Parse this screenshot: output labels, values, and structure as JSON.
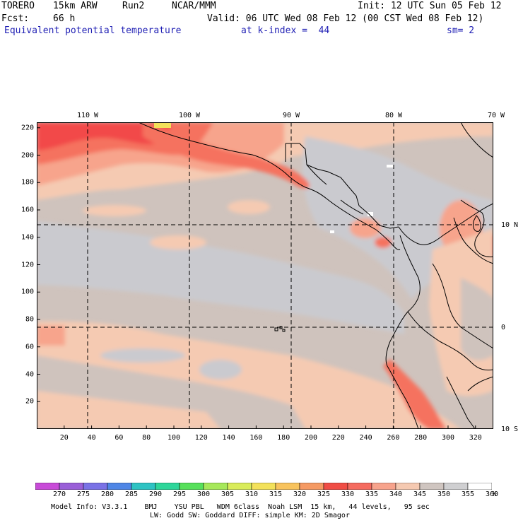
{
  "header": {
    "model": "TORERO",
    "resolution": "15km ARW",
    "run": "Run2",
    "org": "NCAR/MMM",
    "init": "Init: 12 UTC Sun 05 Feb 12",
    "fcst_label": "Fcst:",
    "fcst_value": "66 h",
    "valid": "Valid: 06 UTC Wed 08 Feb 12 (00 CST Wed 08 Feb 12)",
    "field": "Equivalent potential temperature",
    "level": "at k-index =  44",
    "smooth": "sm= 2"
  },
  "map": {
    "lon_labels": [
      "110 W",
      "100 W",
      "90 W",
      "80 W",
      "70 W"
    ],
    "lat_labels": [
      "10 N",
      "0",
      "10 S"
    ],
    "x_ticks": [
      "20",
      "40",
      "60",
      "80",
      "100",
      "120",
      "140",
      "160",
      "180",
      "200",
      "220",
      "240",
      "260",
      "280",
      "300",
      "320"
    ],
    "y_ticks": [
      "20",
      "40",
      "60",
      "80",
      "100",
      "120",
      "140",
      "160",
      "180",
      "200",
      "220"
    ]
  },
  "colorbar": {
    "unit": "K",
    "labels": [
      "270",
      "275",
      "280",
      "285",
      "290",
      "295",
      "300",
      "305",
      "310",
      "315",
      "320",
      "325",
      "330",
      "335",
      "340",
      "345",
      "350",
      "355",
      "360"
    ],
    "colors": [
      "#c84bd8",
      "#9a5fd8",
      "#7a72e6",
      "#4f86e6",
      "#2ec3c3",
      "#2ed69a",
      "#57e05b",
      "#a6e85a",
      "#d9ec5a",
      "#f3e15a",
      "#f8c35d",
      "#f59a63",
      "#f04d45",
      "#f56b5f",
      "#f7a38c",
      "#f5c9b1",
      "#cfc5c0",
      "#cfcfd1",
      "#ffffff"
    ],
    "field_colors": {
      "very_warm": "#f3e15a",
      "hot": "#f24a48",
      "warm": "#f5725f",
      "mild": "#f7a48c",
      "peach": "#f5cab2",
      "taupe": "#cfc3bd",
      "cool": "#cacacf",
      "white": "#ffffff"
    }
  },
  "footer": {
    "line1": "Model Info: V3.3.1    BMJ    YSU PBL   WDM 6class  Noah LSM  15 km,   44 levels,   95 sec",
    "line2": "LW: Godd SW: Goddard DIFF: simple KM: 2D Smagor"
  }
}
